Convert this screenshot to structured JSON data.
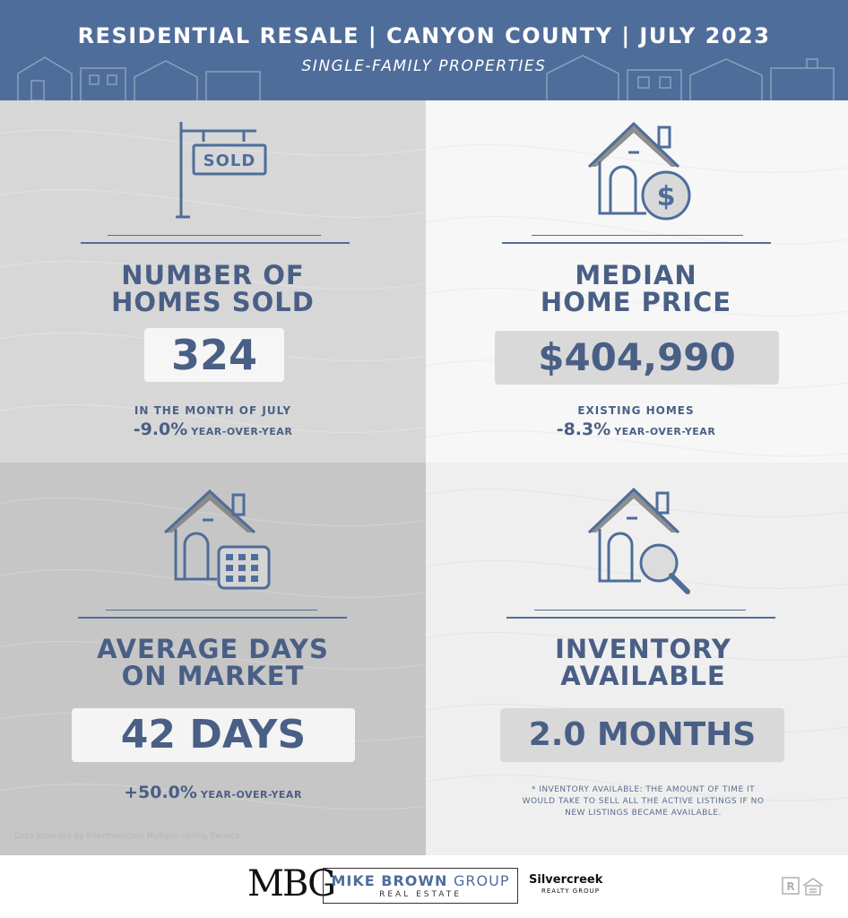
{
  "header": {
    "title": "RESIDENTIAL RESALE | CANYON COUNTY | JULY 2023",
    "subtitle": "SINGLE-FAMILY PROPERTIES"
  },
  "homes_sold": {
    "icon": "sold-sign-icon",
    "label_line1": "NUMBER OF",
    "label_line2": "HOMES SOLD",
    "value": "324",
    "sub": "IN THE MONTH OF JULY",
    "yoy_pct": "-9.0%",
    "yoy_text": "YEAR-OVER-YEAR"
  },
  "median_price": {
    "icon": "house-dollar-icon",
    "label_line1": "MEDIAN",
    "label_line2": "HOME PRICE",
    "value": "$404,990",
    "sub": "EXISTING HOMES",
    "yoy_pct": "-8.3%",
    "yoy_text": "YEAR-OVER-YEAR"
  },
  "days_on_market": {
    "icon": "house-calendar-icon",
    "label_line1": "AVERAGE DAYS",
    "label_line2": "ON MARKET",
    "value": "42 DAYS",
    "yoy_pct": "+50.0%",
    "yoy_text": "YEAR-OVER-YEAR"
  },
  "inventory": {
    "icon": "house-search-icon",
    "label_line1": "INVENTORY",
    "label_line2": "AVAILABLE",
    "value": "2.0 MONTHS",
    "note_line1": "* INVENTORY AVAILABLE: THE AMOUNT OF TIME IT",
    "note_line2": "WOULD TAKE TO SELL ALL THE ACTIVE LISTINGS IF NO",
    "note_line3": "NEW LISTINGS BECAME AVAILABLE."
  },
  "credit": "Data provided by Intermountain Multiple Listing Service.",
  "footer": {
    "logo_mark": "MBG",
    "brand_bold": "MIKE BROWN",
    "brand_light": "GROUP",
    "brand_sub": "REAL ESTATE",
    "partner_name": "Silvercreek",
    "partner_sub": "REALTY GROUP",
    "badge_icons": [
      "realtor-r-icon",
      "equal-housing-icon"
    ]
  },
  "colors": {
    "header_bg": "#4f6d9a",
    "accent_text": "#4a5f85",
    "quad_top_left": "#d7d7d7",
    "quad_top_right": "#f7f7f7",
    "quad_bottom_left": "#c6c6c6",
    "quad_bottom_right": "#efefef"
  }
}
